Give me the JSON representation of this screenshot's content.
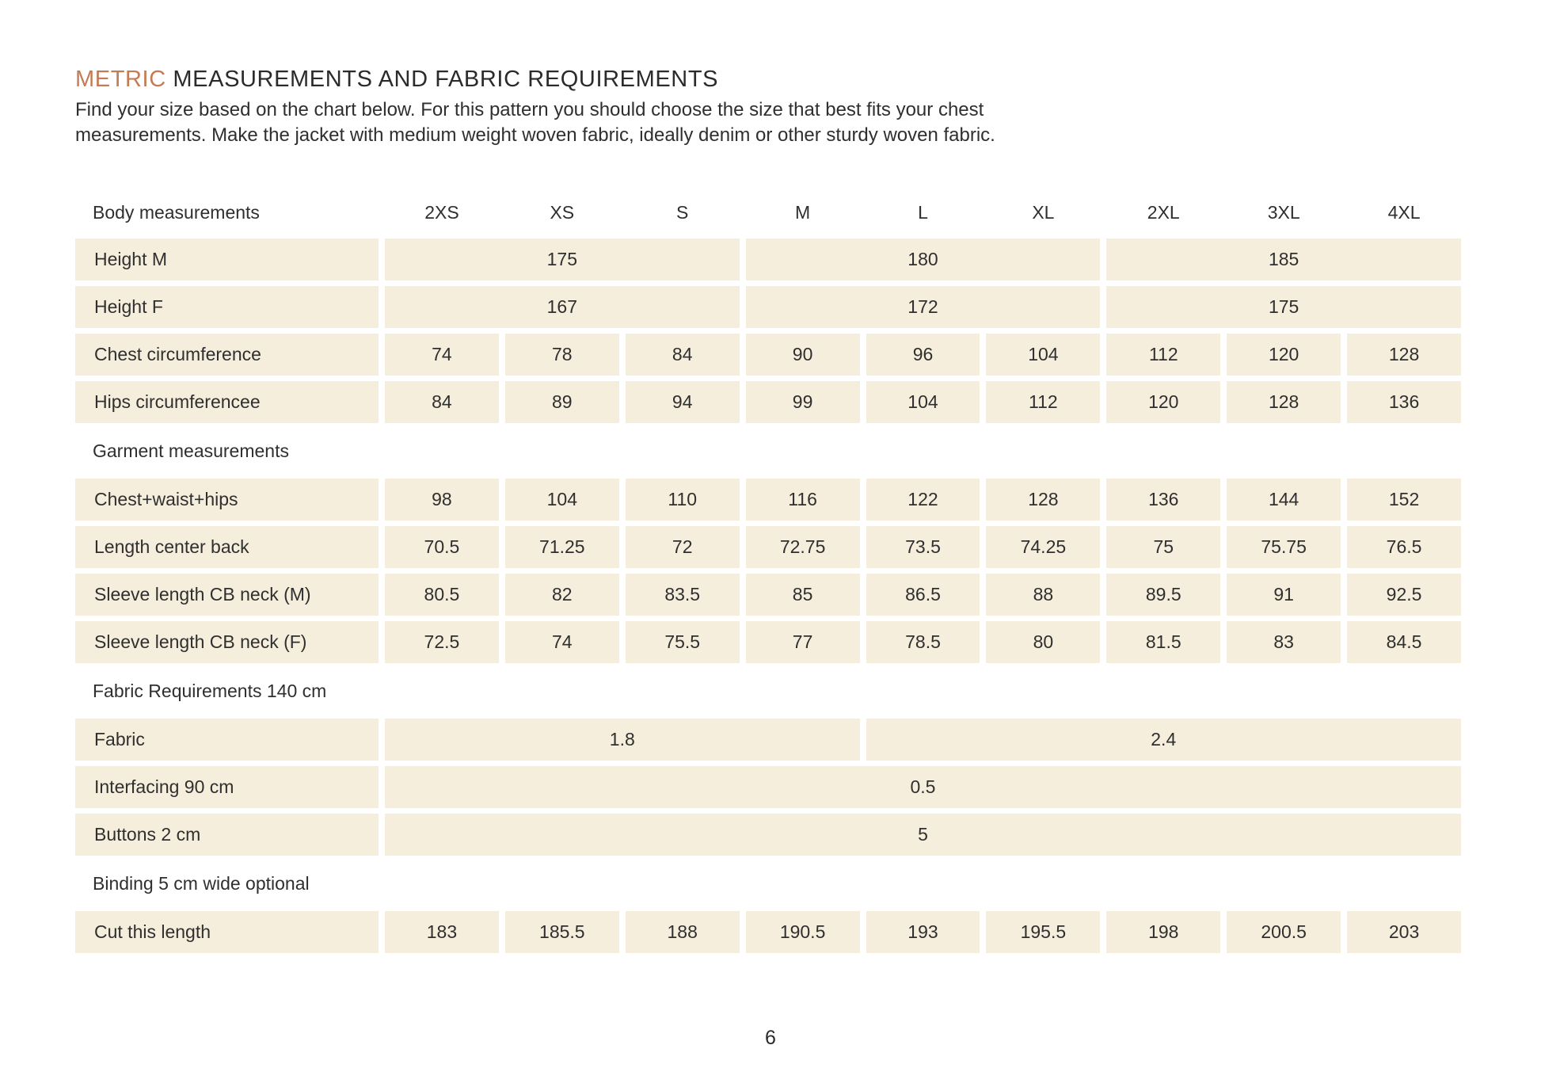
{
  "colors": {
    "accent": "#c57c56",
    "cell_background": "#f6eedc",
    "text": "#2f2f2f",
    "page_background": "#ffffff"
  },
  "header": {
    "title_accent": "METRIC",
    "title_rest": " MEASUREMENTS AND FABRIC REQUIREMENTS",
    "intro_line1": "Find your size based on the chart below. For this pattern you should choose the size that best fits your chest",
    "intro_line2": "measurements. Make the jacket with medium weight woven fabric, ideally denim or other sturdy woven fabric."
  },
  "table": {
    "corner_label": "Body measurements",
    "size_columns": [
      "2XS",
      "XS",
      "S",
      "M",
      "L",
      "XL",
      "2XL",
      "3XL",
      "4XL"
    ],
    "rows": [
      {
        "type": "data",
        "label": "Height M",
        "cells": [
          {
            "v": "175",
            "span": 3
          },
          {
            "v": "180",
            "span": 3
          },
          {
            "v": "185",
            "span": 3
          }
        ]
      },
      {
        "type": "data",
        "label": "Height F",
        "cells": [
          {
            "v": "167",
            "span": 3
          },
          {
            "v": "172",
            "span": 3
          },
          {
            "v": "175",
            "span": 3
          }
        ]
      },
      {
        "type": "data",
        "label": "Chest circumference",
        "cells": [
          {
            "v": "74",
            "span": 1
          },
          {
            "v": "78",
            "span": 1
          },
          {
            "v": "84",
            "span": 1
          },
          {
            "v": "90",
            "span": 1
          },
          {
            "v": "96",
            "span": 1
          },
          {
            "v": "104",
            "span": 1
          },
          {
            "v": "112",
            "span": 1
          },
          {
            "v": "120",
            "span": 1
          },
          {
            "v": "128",
            "span": 1
          }
        ]
      },
      {
        "type": "data",
        "label": "Hips circumferencee",
        "cells": [
          {
            "v": "84",
            "span": 1
          },
          {
            "v": "89",
            "span": 1
          },
          {
            "v": "94",
            "span": 1
          },
          {
            "v": "99",
            "span": 1
          },
          {
            "v": "104",
            "span": 1
          },
          {
            "v": "112",
            "span": 1
          },
          {
            "v": "120",
            "span": 1
          },
          {
            "v": "128",
            "span": 1
          },
          {
            "v": "136",
            "span": 1
          }
        ]
      },
      {
        "type": "section",
        "label": "Garment measurements"
      },
      {
        "type": "data",
        "label": "Chest+waist+hips",
        "cells": [
          {
            "v": "98",
            "span": 1
          },
          {
            "v": "104",
            "span": 1
          },
          {
            "v": "110",
            "span": 1
          },
          {
            "v": "116",
            "span": 1
          },
          {
            "v": "122",
            "span": 1
          },
          {
            "v": "128",
            "span": 1
          },
          {
            "v": "136",
            "span": 1
          },
          {
            "v": "144",
            "span": 1
          },
          {
            "v": "152",
            "span": 1
          }
        ]
      },
      {
        "type": "data",
        "label": "Length center back",
        "cells": [
          {
            "v": "70.5",
            "span": 1
          },
          {
            "v": "71.25",
            "span": 1
          },
          {
            "v": "72",
            "span": 1
          },
          {
            "v": "72.75",
            "span": 1
          },
          {
            "v": "73.5",
            "span": 1
          },
          {
            "v": "74.25",
            "span": 1
          },
          {
            "v": "75",
            "span": 1
          },
          {
            "v": "75.75",
            "span": 1
          },
          {
            "v": "76.5",
            "span": 1
          }
        ]
      },
      {
        "type": "data",
        "label": "Sleeve length CB neck (M)",
        "cells": [
          {
            "v": "80.5",
            "span": 1
          },
          {
            "v": "82",
            "span": 1
          },
          {
            "v": "83.5",
            "span": 1
          },
          {
            "v": "85",
            "span": 1
          },
          {
            "v": "86.5",
            "span": 1
          },
          {
            "v": "88",
            "span": 1
          },
          {
            "v": "89.5",
            "span": 1
          },
          {
            "v": "91",
            "span": 1
          },
          {
            "v": "92.5",
            "span": 1
          }
        ]
      },
      {
        "type": "data",
        "label": "Sleeve length CB neck (F)",
        "cells": [
          {
            "v": "72.5",
            "span": 1
          },
          {
            "v": "74",
            "span": 1
          },
          {
            "v": "75.5",
            "span": 1
          },
          {
            "v": "77",
            "span": 1
          },
          {
            "v": "78.5",
            "span": 1
          },
          {
            "v": "80",
            "span": 1
          },
          {
            "v": "81.5",
            "span": 1
          },
          {
            "v": "83",
            "span": 1
          },
          {
            "v": "84.5",
            "span": 1
          }
        ]
      },
      {
        "type": "section",
        "label": "Fabric Requirements 140 cm"
      },
      {
        "type": "data",
        "label": "Fabric",
        "cells": [
          {
            "v": "1.8",
            "span": 4
          },
          {
            "v": "2.4",
            "span": 5
          }
        ]
      },
      {
        "type": "data",
        "label": "Interfacing 90 cm",
        "cells": [
          {
            "v": "0.5",
            "span": 9
          }
        ]
      },
      {
        "type": "data",
        "label": "Buttons 2 cm",
        "cells": [
          {
            "v": "5",
            "span": 9
          }
        ]
      },
      {
        "type": "section",
        "label": "Binding 5 cm wide optional"
      },
      {
        "type": "data",
        "label": "Cut this length",
        "cells": [
          {
            "v": "183",
            "span": 1
          },
          {
            "v": "185.5",
            "span": 1
          },
          {
            "v": "188",
            "span": 1
          },
          {
            "v": "190.5",
            "span": 1
          },
          {
            "v": "193",
            "span": 1
          },
          {
            "v": "195.5",
            "span": 1
          },
          {
            "v": "198",
            "span": 1
          },
          {
            "v": "200.5",
            "span": 1
          },
          {
            "v": "203",
            "span": 1
          }
        ]
      }
    ]
  },
  "footer": {
    "page_number": "6"
  }
}
